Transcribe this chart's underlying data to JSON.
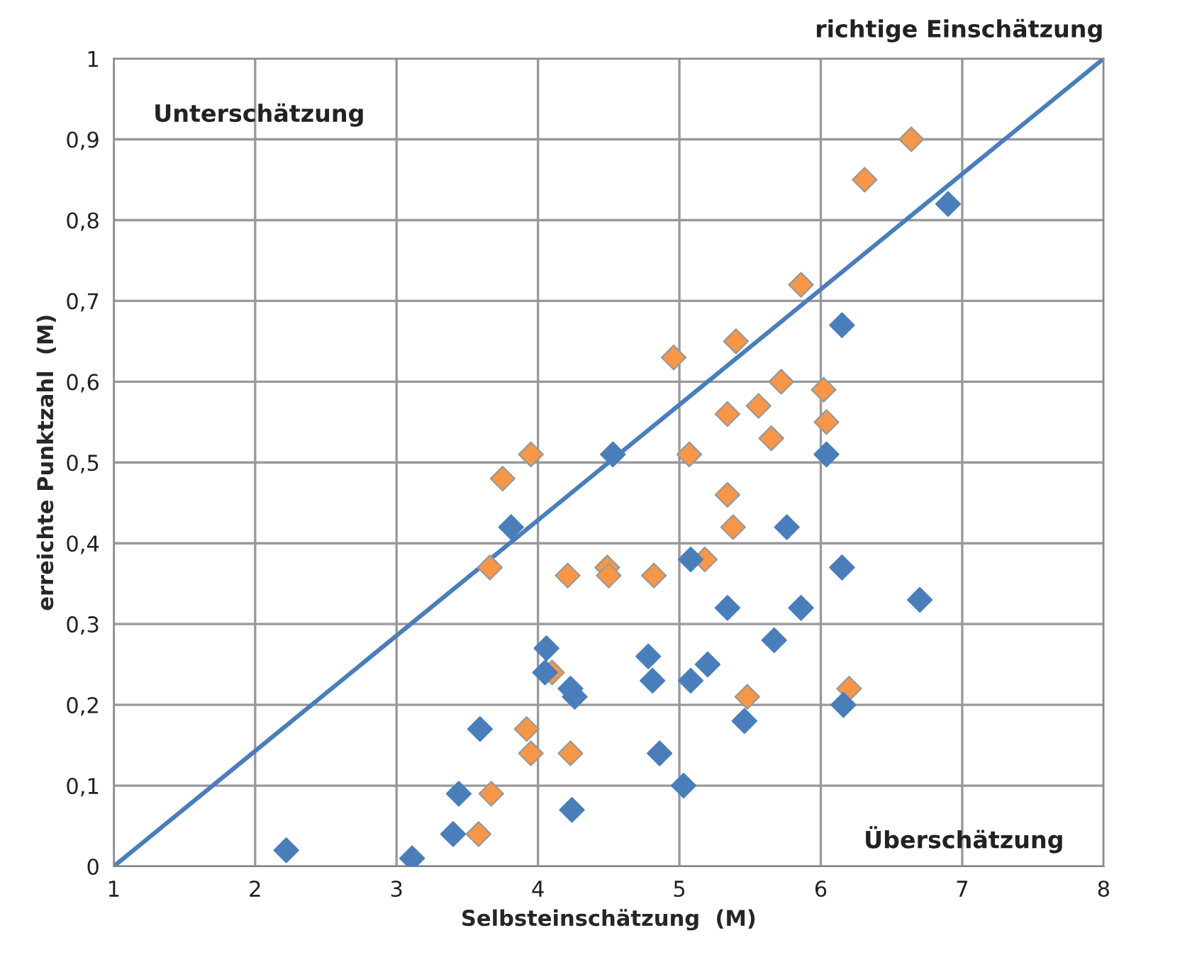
{
  "chart_data": {
    "type": "scatter",
    "xlabel": "Selbsteinschätzung  (M)",
    "ylabel": "erreichte Punktzahl  (M)",
    "annotations": [
      "richtige Einschätzung",
      "Unterschätzung",
      "Überschätzung"
    ],
    "xlim": [
      1,
      8
    ],
    "xticks": [
      1,
      2,
      3,
      4,
      5,
      6,
      7,
      8
    ],
    "ylim": [
      0,
      1
    ],
    "yticks": [
      0,
      {
        "value": 0.1,
        "label": "0,1"
      },
      {
        "value": 0.2,
        "label": "0,2"
      },
      {
        "value": 0.3,
        "label": "0,3"
      },
      {
        "value": 0.4,
        "label": "0,4"
      },
      {
        "value": 0.5,
        "label": "0,5"
      },
      {
        "value": 0.6,
        "label": "0,6"
      },
      {
        "value": 0.7,
        "label": "0,7"
      },
      {
        "value": 0.8,
        "label": "0,8"
      },
      {
        "value": 0.9,
        "label": "0,9"
      },
      1
    ],
    "grid": true,
    "legend": false,
    "marker": "diamond",
    "series": [
      {
        "type": "line",
        "color": "#4a7ebb",
        "x": [
          1,
          8
        ],
        "values": [
          0,
          1
        ],
        "marker": "none",
        "line_style": "solid"
      },
      {
        "color": "#4a7ebb",
        "x": [
          2.22,
          3.11,
          3.4,
          3.44,
          3.59,
          3.81,
          4.06,
          4.05,
          4.23,
          4.26,
          4.24,
          4.53,
          4.78,
          4.81,
          4.86,
          5.03,
          5.08,
          5.08,
          5.2,
          5.34,
          5.46,
          5.76,
          5.86,
          5.67,
          6.04,
          6.15,
          6.15,
          6.16,
          6.7,
          6.9
        ],
        "values": [
          0.02,
          0.01,
          0.04,
          0.09,
          0.17,
          0.42,
          0.27,
          0.24,
          0.22,
          0.21,
          0.07,
          0.51,
          0.26,
          0.23,
          0.14,
          0.1,
          0.38,
          0.23,
          0.25,
          0.32,
          0.18,
          0.42,
          0.32,
          0.28,
          0.51,
          0.67,
          0.37,
          0.2,
          0.33,
          0.82
        ]
      },
      {
        "color": "#f79646",
        "x": [
          6.64,
          6.31,
          5.86,
          4.96,
          5.4,
          5.72,
          6.02,
          6.04,
          5.56,
          5.34,
          5.65,
          5.07,
          3.95,
          3.75,
          5.34,
          5.38,
          5.18,
          3.66,
          4.49,
          4.5,
          4.21,
          4.82,
          4.1,
          5.48,
          6.2,
          3.92,
          3.95,
          4.23,
          3.67,
          3.58
        ],
        "values": [
          0.9,
          0.85,
          0.72,
          0.63,
          0.65,
          0.6,
          0.59,
          0.55,
          0.57,
          0.56,
          0.53,
          0.51,
          0.51,
          0.48,
          0.46,
          0.42,
          0.38,
          0.37,
          0.37,
          0.36,
          0.36,
          0.36,
          0.24,
          0.21,
          0.22,
          0.17,
          0.14,
          0.14,
          0.09,
          0.04
        ]
      }
    ]
  }
}
